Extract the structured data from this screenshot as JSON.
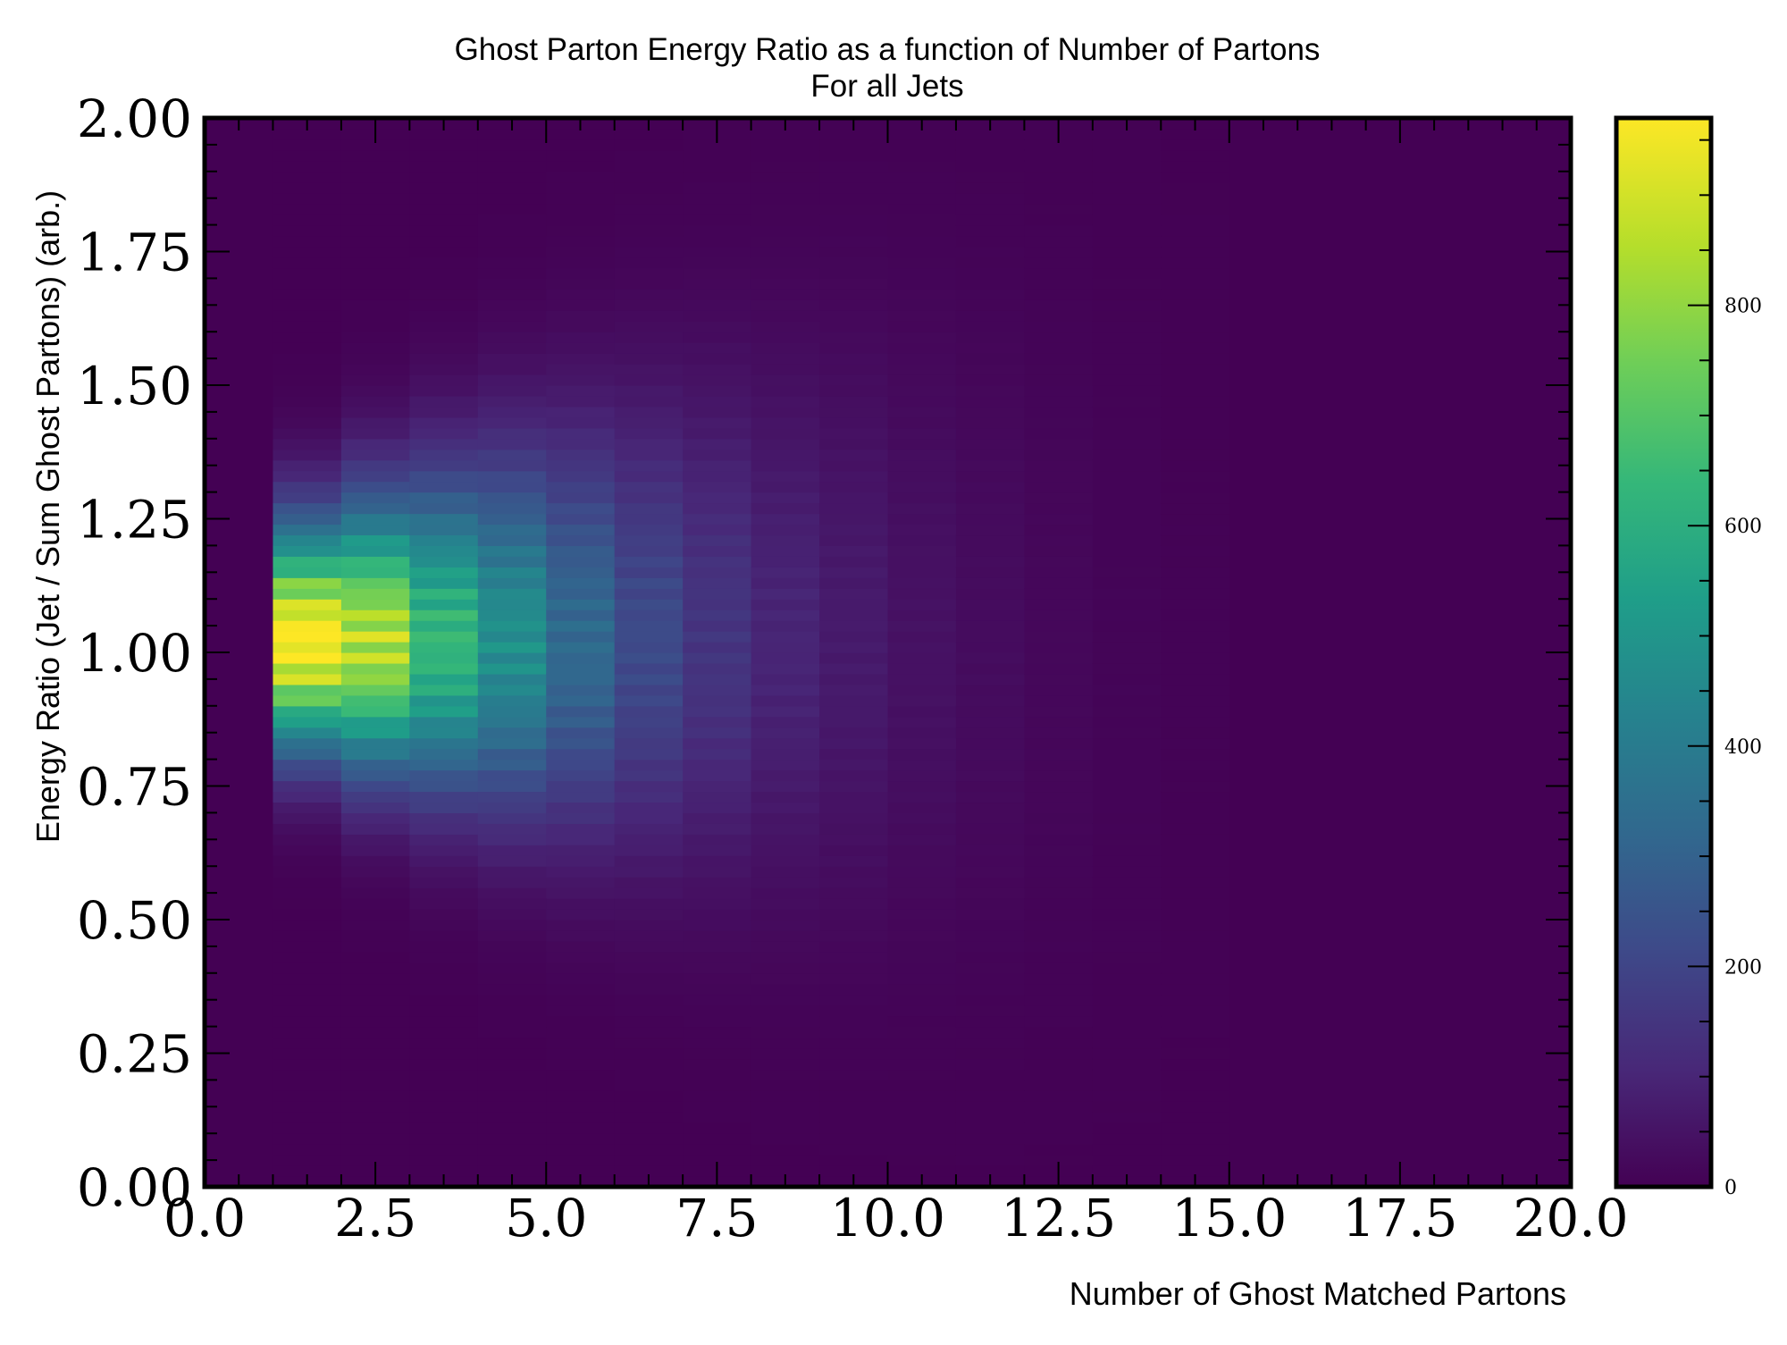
{
  "chart_data": {
    "type": "heatmap",
    "title": "Ghost Parton Energy Ratio as a function of Number of Partons",
    "subtitle": "For all Jets",
    "xlabel": "Number of Ghost Matched Partons",
    "ylabel": "Energy Ratio (Jet / Sum Ghost Partons) (arb.)",
    "xlim": [
      0,
      20
    ],
    "ylim": [
      0,
      2
    ],
    "x_ticks": [
      "0.0",
      "2.5",
      "5.0",
      "7.5",
      "10.0",
      "12.5",
      "15.0",
      "17.5",
      "20.0"
    ],
    "y_ticks": [
      "0.00",
      "0.25",
      "0.50",
      "0.75",
      "1.00",
      "1.25",
      "1.50",
      "1.75",
      "2.00"
    ],
    "x_bins": [
      1,
      2,
      3,
      4,
      5,
      6,
      7,
      8,
      9,
      10,
      11,
      12,
      13,
      14
    ],
    "peak_counts": [
      970,
      860,
      640,
      480,
      330,
      220,
      150,
      100,
      70,
      45,
      30,
      18,
      10,
      5
    ],
    "peak_ratio": 1.02,
    "colorbar": {
      "colormap": "viridis",
      "range": [
        0,
        970
      ],
      "ticks": [
        "0",
        "200",
        "400",
        "600",
        "800"
      ],
      "tick_values": [
        0,
        200,
        400,
        600,
        800
      ]
    },
    "grid": false
  }
}
